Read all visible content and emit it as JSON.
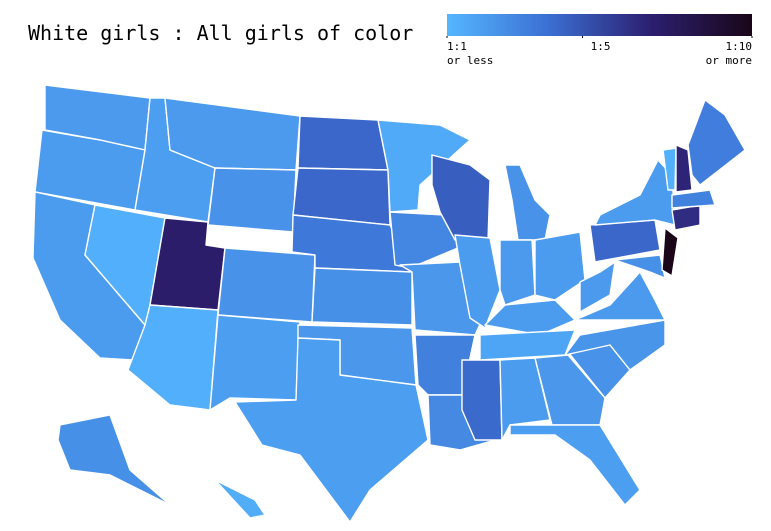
{
  "chart_data": {
    "type": "choropleth",
    "title": "White girls : All girls of color",
    "colorbar_lim": [
      1,
      10
    ],
    "colorbar_ticks": [
      {
        "value": 1,
        "label": "1:1",
        "note": "or less"
      },
      {
        "value": 5,
        "label": "1:5"
      },
      {
        "value": 10,
        "label": "1:10",
        "note": "or more"
      }
    ],
    "color_stops": [
      "#55b6ff",
      "#3b6fd3",
      "#2c1f70",
      "#1a0618"
    ],
    "values": [
      2.2,
      2.1,
      2.1,
      1.3,
      2.0,
      2.2,
      2.5,
      7.2,
      1.3,
      2.5,
      2.0,
      4.3,
      4.3,
      3.6,
      2.6,
      2.3,
      2.0,
      1.5,
      3.0,
      2.3,
      3.3,
      2.9,
      4.6,
      2.1,
      2.5,
      2.2,
      2.1,
      2.1,
      1.7,
      4.2,
      2.1,
      2.3,
      2.0,
      2.5,
      2.4,
      2.2,
      2.2,
      4.3,
      2.1,
      2.6,
      10,
      6.5,
      3.2,
      1.2,
      6.8,
      3.4,
      2.6,
      1.4
    ]
  }
}
